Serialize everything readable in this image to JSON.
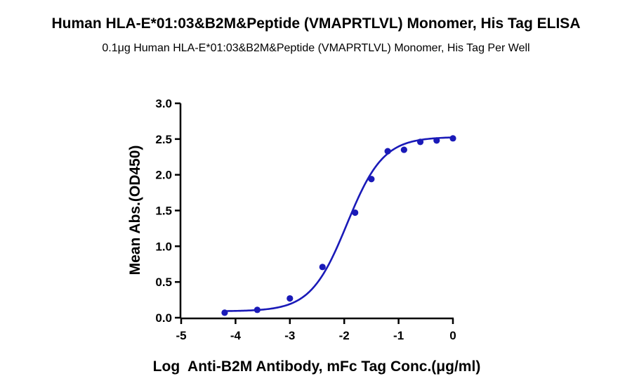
{
  "chart_data": {
    "type": "scatter",
    "title": "Human HLA-E*01:03&B2M&Peptide (VMAPRTLVL) Monomer, His Tag ELISA",
    "subtitle": "0.1μg Human HLA-E*01:03&B2M&Peptide (VMAPRTLVL) Monomer, His Tag Per Well",
    "xlabel": "Log  Anti-B2M Antibody, mFc Tag Conc.(μg/ml)",
    "ylabel": "Mean Abs.(OD450)",
    "xlim": [
      -5,
      0
    ],
    "ylim": [
      0,
      3.0
    ],
    "x_ticks": [
      "-5",
      "-4",
      "-3",
      "-2",
      "-1",
      "0"
    ],
    "y_ticks": [
      "0.0",
      "0.5",
      "1.0",
      "1.5",
      "2.0",
      "2.5",
      "3.0"
    ],
    "grid": false,
    "legend": "none",
    "series": [
      {
        "color": "#1a1ab8",
        "points": [
          {
            "x": -4.2,
            "y": 0.07
          },
          {
            "x": -3.6,
            "y": 0.11
          },
          {
            "x": -3.0,
            "y": 0.27
          },
          {
            "x": -2.4,
            "y": 0.71
          },
          {
            "x": -1.8,
            "y": 1.47
          },
          {
            "x": -1.5,
            "y": 1.94
          },
          {
            "x": -1.2,
            "y": 2.33
          },
          {
            "x": -0.9,
            "y": 2.35
          },
          {
            "x": -0.6,
            "y": 2.46
          },
          {
            "x": -0.3,
            "y": 2.48
          },
          {
            "x": 0.0,
            "y": 2.51
          }
        ],
        "fit": {
          "model": "4PL",
          "bottom": 0.09,
          "top": 2.53,
          "log_ec50": -1.95,
          "hill_slope": 1.3,
          "x_range": [
            -4.2,
            0.0
          ]
        }
      }
    ]
  }
}
